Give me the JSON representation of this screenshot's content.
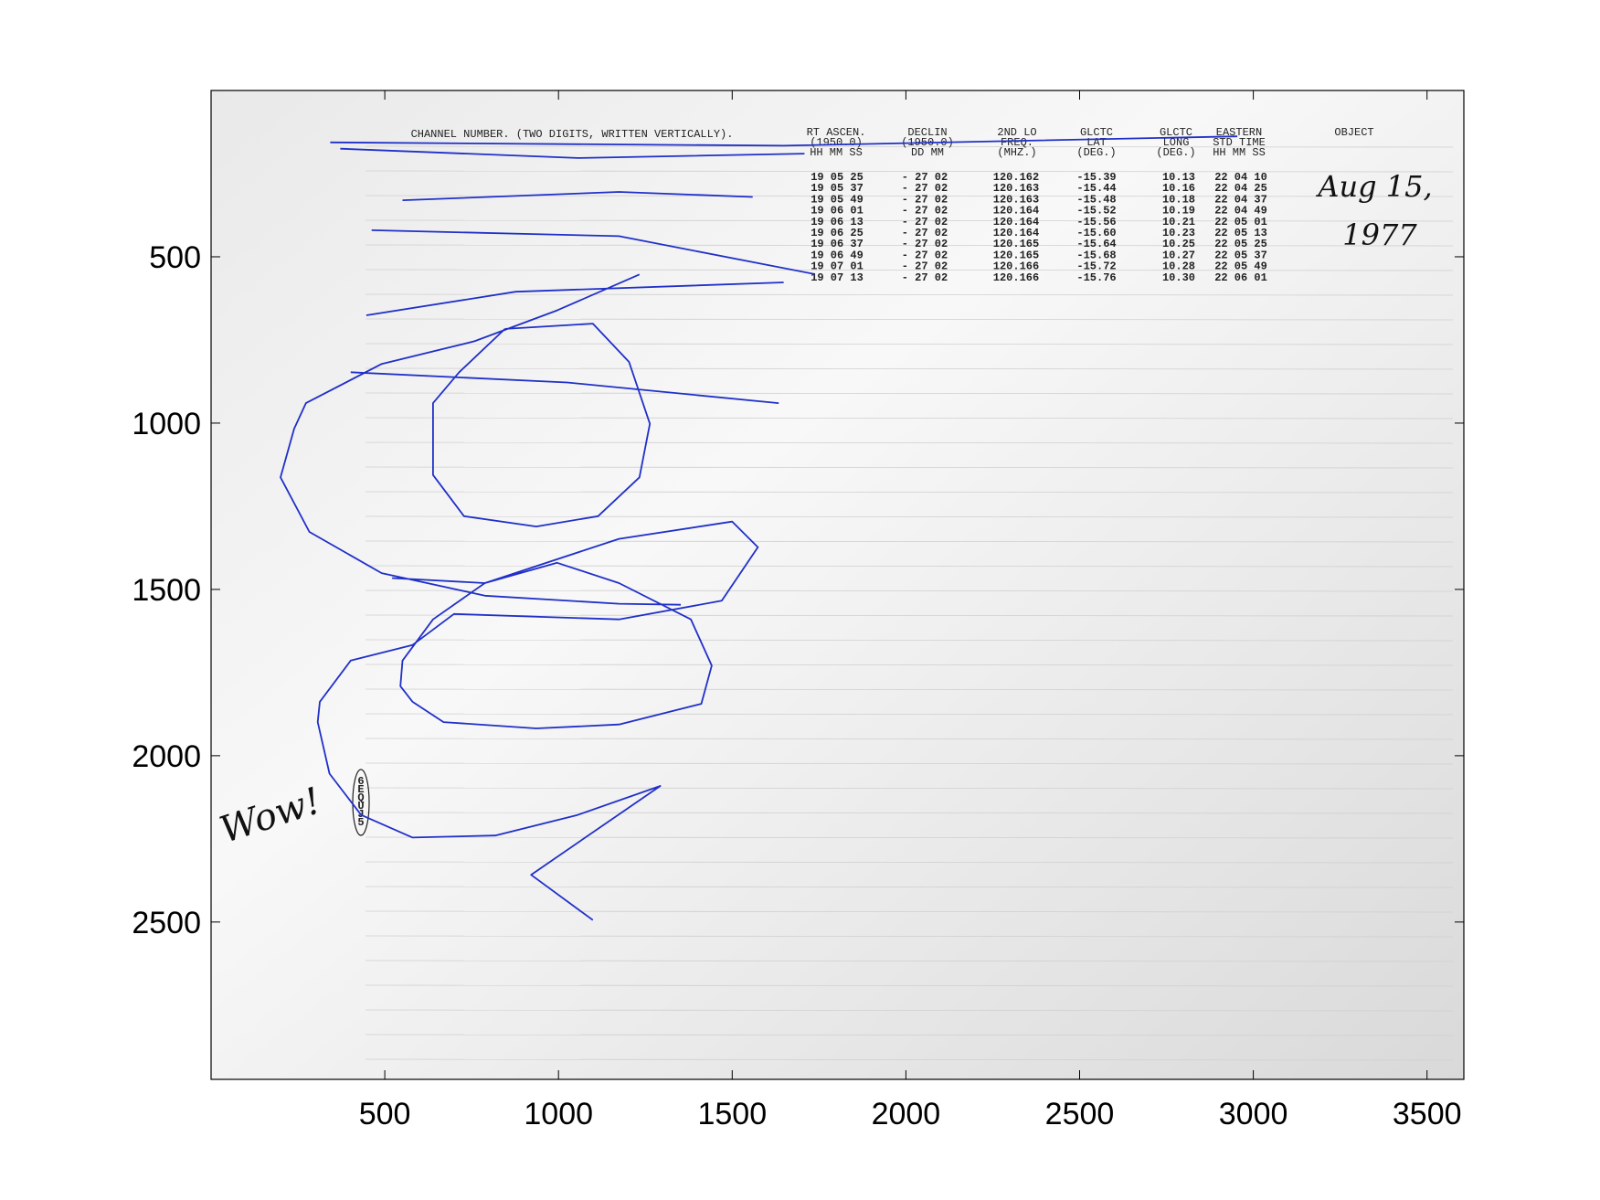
{
  "chart_data": {
    "type": "line",
    "color": "#2030c8",
    "xlim": [
      0,
      3606
    ],
    "ylim": [
      0,
      2973
    ],
    "y_reversed": true,
    "xticks": [
      500,
      1000,
      1500,
      2000,
      2500,
      3000,
      3500
    ],
    "yticks": [
      500,
      1000,
      1500,
      2000,
      2500
    ],
    "grid": false,
    "x": [
      343,
      1648,
      2954,
      null,
      372,
      1055,
      1708,
      null,
      551,
      1174,
      1559,
      null,
      462,
      1174,
      1737,
      null,
      447,
      877,
      1648,
      null,
      402,
      1025,
      1634,
      null,
      1233,
      996,
      758,
      491,
      273,
      239,
      200,
      283,
      491,
      788,
      1174,
      1352,
      null,
      846,
      1099,
      1203,
      1263,
      1233,
      1114,
      936,
      728,
      639,
      639,
      714,
      846,
      null,
      521,
      788,
      1174,
      1500,
      1574,
      1470,
      1174,
      699,
      580,
      402,
      313,
      307,
      341,
      432,
      580,
      818,
      1055,
      1293,
      921,
      1099,
      null,
      580,
      669,
      936,
      1174,
      1411,
      1441,
      1381,
      1174,
      996,
      788,
      639,
      551,
      545,
      580
    ],
    "values": [
      156,
      166,
      138,
      null,
      175,
      203,
      190,
      null,
      330,
      305,
      320,
      null,
      420,
      438,
      552,
      null,
      676,
      605,
      577,
      null,
      847,
      878,
      940,
      null,
      553,
      661,
      754,
      822,
      940,
      1017,
      1163,
      1327,
      1451,
      1519,
      1543,
      1546,
      null,
      717,
      701,
      816,
      1002,
      1163,
      1280,
      1311,
      1280,
      1156,
      940,
      847,
      717,
      null,
      1466,
      1481,
      1348,
      1296,
      1373,
      1534,
      1590,
      1574,
      1667,
      1714,
      1838,
      1899,
      2054,
      2178,
      2246,
      2240,
      2178,
      2091,
      2358,
      2494,
      null,
      1838,
      1899,
      1918,
      1906,
      1844,
      1729,
      1590,
      1481,
      1420,
      1481,
      1590,
      1714,
      1791,
      1838
    ],
    "annotations": [
      "Wow!",
      "Aug 15,",
      "1977"
    ],
    "circled": [
      "6",
      "E",
      "Q",
      "U",
      "J",
      "5"
    ],
    "printout": {
      "channel_header": "CHANNEL NUMBER. (TWO DIGITS, WRITTEN VERTICALLY).",
      "headers": [
        [
          "RT ASCEN.",
          "(1950.0)",
          "HH MM SS"
        ],
        [
          "DECLIN",
          "(1950.0)",
          "DD MM"
        ],
        [
          "2ND LO",
          "FREQ.",
          "(MHZ.)"
        ],
        [
          "GLCTC",
          "LAT",
          "(DEG.)"
        ],
        [
          "GLCTC",
          "LONG",
          "(DEG.)"
        ],
        [
          "EASTERN",
          "STD TIME",
          "HH MM SS"
        ],
        [
          "OBJECT"
        ]
      ],
      "rows": [
        [
          "19 05 25",
          "- 27 02",
          "120.162",
          "-15.39",
          "10.13",
          "22 04 10"
        ],
        [
          "19 05 37",
          "- 27 02",
          "120.163",
          "-15.44",
          "10.16",
          "22 04 25"
        ],
        [
          "19 05 49",
          "- 27 02",
          "120.163",
          "-15.48",
          "10.18",
          "22 04 37"
        ],
        [
          "19 06 01",
          "- 27 02",
          "120.164",
          "-15.52",
          "10.19",
          "22 04 49"
        ],
        [
          "19 06 13",
          "- 27 02",
          "120.164",
          "-15.56",
          "10.21",
          "22 05 01"
        ],
        [
          "19 06 25",
          "- 27 02",
          "120.164",
          "-15.60",
          "10.23",
          "22 05 13"
        ],
        [
          "19 06 37",
          "- 27 02",
          "120.165",
          "-15.64",
          "10.25",
          "22 05 25"
        ],
        [
          "19 06 49",
          "- 27 02",
          "120.165",
          "-15.68",
          "10.27",
          "22 05 37"
        ],
        [
          "19 07 01",
          "- 27 02",
          "120.166",
          "-15.72",
          "10.28",
          "22 05 49"
        ],
        [
          "19 07 13",
          "- 27 02",
          "120.166",
          "-15.76",
          "10.30",
          "22 06 01"
        ]
      ]
    }
  }
}
